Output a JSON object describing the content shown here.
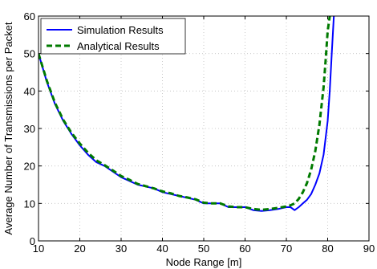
{
  "chart_data": {
    "type": "line",
    "xlabel": "Node Range [m]",
    "ylabel": "Average Number of Transmissions per Packet",
    "xlim": [
      10,
      90
    ],
    "ylim": [
      0,
      60
    ],
    "x_ticks": [
      10,
      20,
      30,
      40,
      50,
      60,
      70,
      80,
      90
    ],
    "y_ticks": [
      0,
      10,
      20,
      30,
      40,
      50,
      60
    ],
    "grid": true,
    "legend_position": "top-left",
    "series": [
      {
        "name": "Simulation Results",
        "color": "#0000ff",
        "line_style": "solid",
        "x": [
          10,
          12,
          14,
          16,
          18,
          20,
          22,
          24,
          26,
          28,
          30,
          32,
          34,
          36,
          38,
          40,
          42,
          44,
          46,
          48,
          50,
          52,
          54,
          56,
          58,
          60,
          62,
          64,
          66,
          68,
          70,
          71,
          72,
          73,
          74,
          75,
          76,
          77,
          78,
          79,
          80,
          80.5,
          81,
          81.5
        ],
        "values": [
          50,
          42.5,
          36.5,
          32,
          28.5,
          25.5,
          23,
          21,
          20,
          18.5,
          17,
          16,
          15,
          14.5,
          14,
          13,
          12.5,
          12,
          11.5,
          11,
          10,
          10,
          10,
          9,
          9,
          9,
          8.2,
          8,
          8.2,
          8.5,
          9,
          9,
          8.2,
          9,
          10,
          11,
          12.5,
          15,
          18,
          23,
          32,
          40,
          50,
          60
        ]
      },
      {
        "name": "Analytical Results",
        "color": "#007a00",
        "line_style": "dashed",
        "x": [
          10,
          12,
          14,
          16,
          18,
          20,
          22,
          24,
          26,
          28,
          30,
          32,
          34,
          36,
          38,
          40,
          42,
          44,
          46,
          48,
          50,
          52,
          54,
          56,
          58,
          60,
          62,
          64,
          66,
          68,
          70,
          71,
          72,
          73,
          74,
          75,
          76,
          77,
          78,
          79,
          79.5,
          80,
          80.5
        ],
        "values": [
          50,
          42.8,
          36.8,
          32.3,
          28.8,
          26,
          23.5,
          21.5,
          20.2,
          18.8,
          17.3,
          16.3,
          15.2,
          14.6,
          14,
          13.2,
          12.7,
          12,
          11.6,
          11.1,
          10.2,
          10,
          10,
          9.2,
          9,
          9,
          8.5,
          8.3,
          8.5,
          8.8,
          9.2,
          9.5,
          10,
          11.2,
          13,
          15.5,
          19,
          24,
          31,
          41,
          48,
          56,
          60
        ]
      }
    ]
  }
}
